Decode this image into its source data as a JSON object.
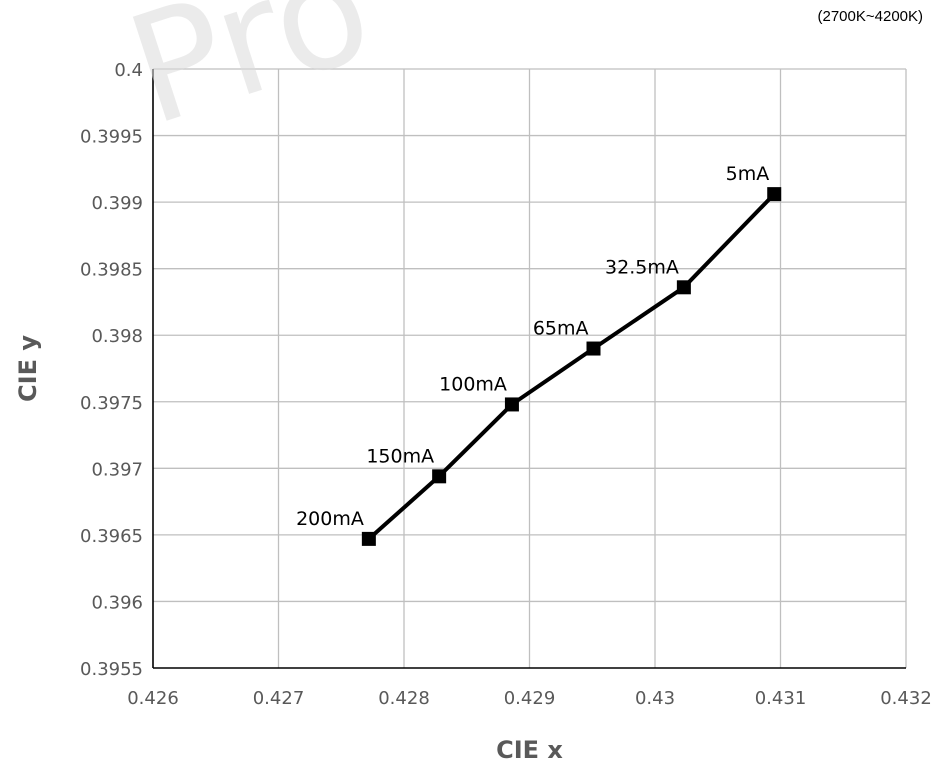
{
  "note": "(2700K~4200K)",
  "watermark": "Pro",
  "chart_data": {
    "type": "line",
    "title": "",
    "xlabel": "CIE x",
    "ylabel": "CIE y",
    "xlim": [
      0.426,
      0.432
    ],
    "ylim": [
      0.3955,
      0.4
    ],
    "grid": true,
    "x_ticks": [
      "0.426",
      "0.427",
      "0.428",
      "0.429",
      "0.43",
      "0.431",
      "0.432"
    ],
    "y_ticks": [
      "0.4",
      "0.3995",
      "0.399",
      "0.3985",
      "0.398",
      "0.3975",
      "0.397",
      "0.3965",
      "0.396",
      "0.3955"
    ],
    "series": [
      {
        "marker": "square",
        "color": "#000000",
        "points": [
          {
            "x": 0.42772,
            "y": 0.39647,
            "label": "200mA"
          },
          {
            "x": 0.42828,
            "y": 0.39694,
            "label": "150mA"
          },
          {
            "x": 0.42886,
            "y": 0.39748,
            "label": "100mA"
          },
          {
            "x": 0.42951,
            "y": 0.3979,
            "label": "65mA"
          },
          {
            "x": 0.43023,
            "y": 0.39836,
            "label": "32.5mA"
          },
          {
            "x": 0.43095,
            "y": 0.39906,
            "label": "5mA"
          }
        ]
      }
    ]
  }
}
